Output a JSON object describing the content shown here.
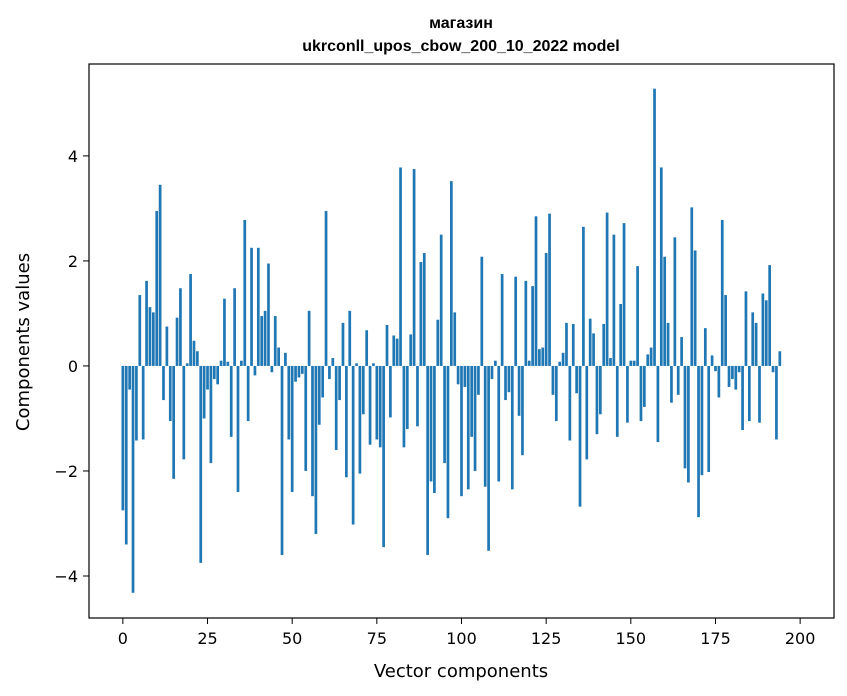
{
  "chart_data": {
    "type": "bar",
    "title_line1": "магазин",
    "title_line2": "ukrconll_upos_cbow_200_10_2022 model",
    "xlabel": "Vector components",
    "ylabel": "Components values",
    "xlim": [
      -10,
      210
    ],
    "ylim": [
      -4.8,
      5.75
    ],
    "xticks": [
      0,
      25,
      50,
      75,
      100,
      125,
      150,
      175,
      200
    ],
    "yticks": [
      -4,
      -2,
      0,
      2,
      4
    ],
    "ytick_labels": [
      "−4",
      "−2",
      "0",
      "2",
      "4"
    ],
    "bar_color": "#1f77b4",
    "grid": false,
    "values": [
      -2.75,
      -3.4,
      -0.45,
      -4.32,
      -1.42,
      1.35,
      -1.4,
      1.62,
      1.12,
      1.02,
      2.95,
      3.45,
      -0.65,
      0.75,
      -1.05,
      -2.15,
      0.92,
      1.48,
      -1.78,
      0.05,
      1.75,
      0.48,
      0.28,
      -3.75,
      -1.0,
      -0.45,
      -1.85,
      -0.25,
      -0.35,
      0.1,
      1.28,
      0.08,
      -1.35,
      1.48,
      -2.4,
      0.1,
      2.78,
      -1.05,
      2.25,
      -0.18,
      2.25,
      0.95,
      1.05,
      1.95,
      -0.12,
      0.95,
      0.35,
      -3.6,
      0.25,
      -1.4,
      -2.4,
      -0.3,
      -0.22,
      -0.15,
      -2.0,
      1.05,
      -2.48,
      -3.2,
      -1.12,
      -0.6,
      2.95,
      -0.25,
      0.15,
      -1.6,
      -0.65,
      0.82,
      -2.12,
      1.05,
      -3.02,
      0.05,
      -2.05,
      -0.92,
      0.68,
      -1.5,
      0.05,
      -1.4,
      -1.55,
      -3.45,
      0.78,
      -0.98,
      0.58,
      0.52,
      3.78,
      -1.55,
      -1.2,
      0.6,
      3.75,
      -1.15,
      1.98,
      2.15,
      -3.6,
      -2.2,
      -2.42,
      0.88,
      2.5,
      -1.85,
      -2.9,
      3.52,
      1.02,
      -0.35,
      -2.48,
      -0.4,
      -2.35,
      -1.35,
      -2.0,
      -0.55,
      2.08,
      -2.3,
      -3.52,
      -0.25,
      0.1,
      -2.2,
      1.75,
      -0.65,
      -0.5,
      -2.35,
      1.7,
      -0.95,
      -1.7,
      1.62,
      0.1,
      1.52,
      2.85,
      0.32,
      0.35,
      2.15,
      2.9,
      -0.55,
      -1.05,
      0.08,
      0.25,
      0.82,
      -1.42,
      0.8,
      -0.52,
      -2.68,
      2.65,
      -1.78,
      0.9,
      0.62,
      -1.3,
      -0.92,
      0.8,
      2.92,
      0.15,
      2.5,
      -1.35,
      1.18,
      2.72,
      -1.08,
      0.1,
      0.1,
      1.9,
      -1.05,
      -0.78,
      0.22,
      0.35,
      5.28,
      -1.45,
      3.78,
      2.08,
      0.82,
      -0.7,
      2.45,
      -0.55,
      0.55,
      -1.95,
      -2.22,
      3.02,
      2.2,
      -2.88,
      -2.08,
      0.72,
      -2.02,
      0.2,
      -0.1,
      -0.6,
      2.78,
      1.35,
      -0.4,
      -0.25,
      -0.45,
      -0.12,
      -1.22,
      1.42,
      -1.05,
      1.02,
      0.82,
      -1.08,
      1.38,
      1.25,
      1.92,
      -0.12,
      -1.4,
      0.28
    ]
  }
}
